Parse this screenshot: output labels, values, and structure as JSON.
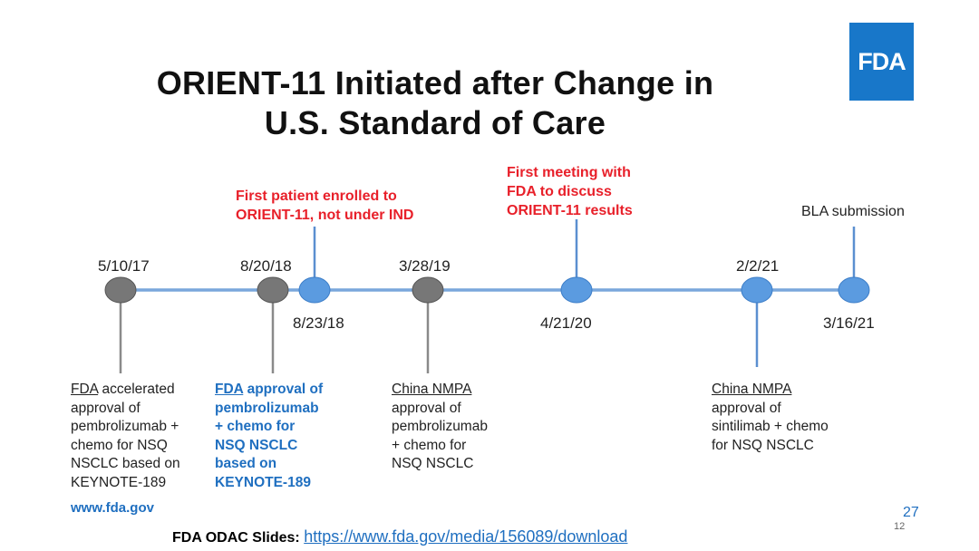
{
  "title_line1": "ORIENT-11 Initiated after Change in",
  "title_line2": "U.S. Standard of Care",
  "logo_text": "FDA",
  "colors": {
    "accent": "#1f6fc0",
    "highlight": "#e8202a",
    "grey_node": "#777777",
    "blue_node": "#5b9be0",
    "timeline": "#7aa7dc"
  },
  "dates": {
    "d1": "5/10/17",
    "d2": "8/20/18",
    "d3": "8/23/18",
    "d4": "3/28/19",
    "d5": "4/21/20",
    "d6": "2/2/21",
    "d7": "3/16/21"
  },
  "annotations": {
    "first_patient_l1": "First patient enrolled to",
    "first_patient_l2": "ORIENT-11, not under IND",
    "first_meeting_l1": "First meeting with",
    "first_meeting_l2": "FDA to discuss",
    "first_meeting_l3": "ORIENT-11 results",
    "bla": "BLA submission"
  },
  "desc1": {
    "agency": "FDA",
    "rest1": " accelerated",
    "l2": "approval of",
    "l3": "pembrolizumab +",
    "l4": "chemo for NSQ",
    "l5": "NSCLC based on",
    "l6": "KEYNOTE-189"
  },
  "desc2": {
    "agency": "FDA",
    "rest1": " approval of",
    "l2": "pembrolizumab",
    "l3": "+ chemo for",
    "l4": "NSQ NSCLC",
    "l5": "based on",
    "l6": "KEYNOTE-189"
  },
  "desc3": {
    "agency": "China NMPA",
    "l2": "approval of",
    "l3": "pembrolizumab",
    "l4": "+ chemo for",
    "l5": "NSQ NSCLC"
  },
  "desc4": {
    "agency": "China NMPA",
    "l2": "approval of",
    "l3": "sintilimab + chemo",
    "l4": "for NSQ NSCLC"
  },
  "website": "www.fda.gov",
  "page_number": "27",
  "page_number_small": "12",
  "footer_label": "FDA ODAC Slides:",
  "footer_link": "https://www.fda.gov/media/156089/download"
}
